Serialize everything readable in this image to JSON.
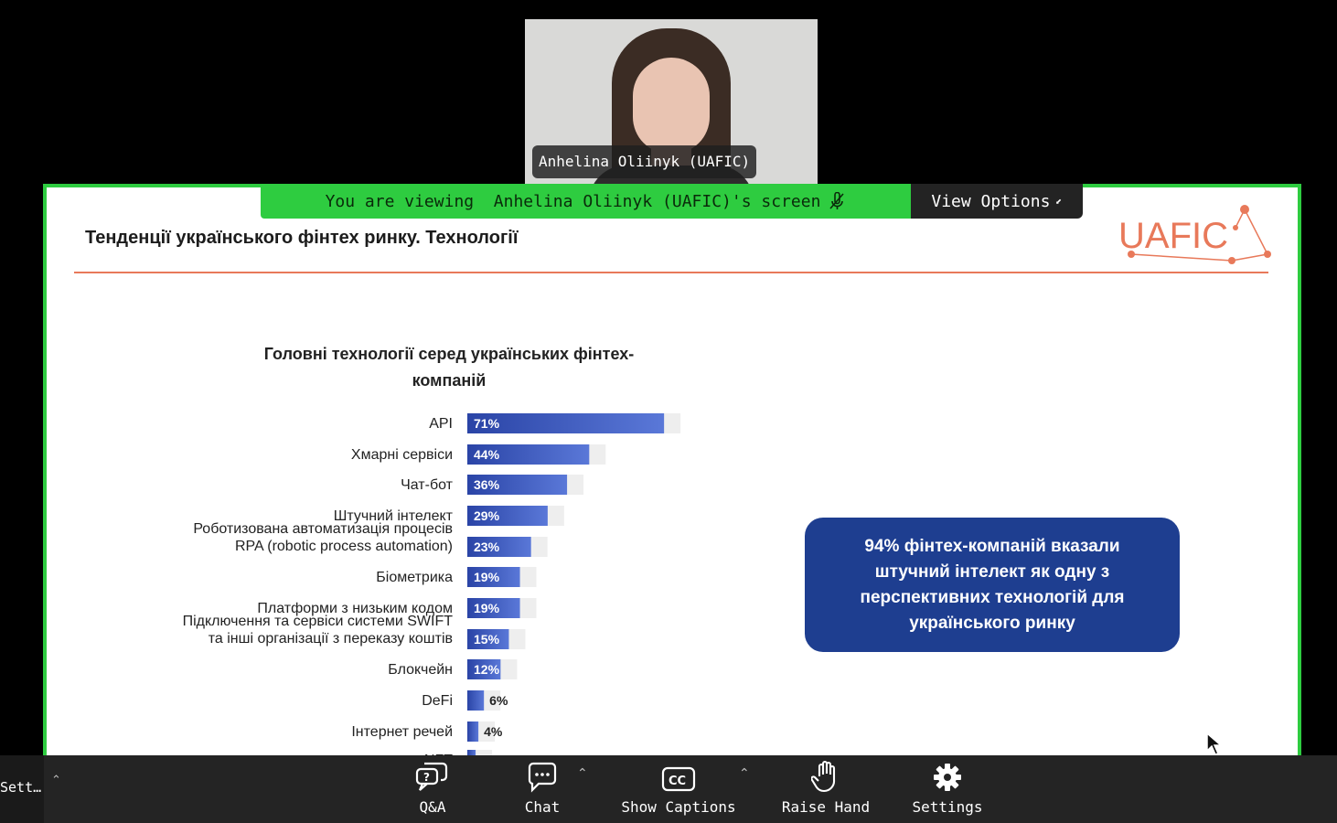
{
  "participant": {
    "name": "Anhelina Oliinyk (UAFIC)"
  },
  "banner": {
    "viewing_text": "You are viewing  Anhelina Oliinyk (UAFIC)'s screen",
    "view_options_label": "View Options"
  },
  "slide": {
    "title": "Тенденції українського фінтех ринку. Технології",
    "logo_text": "UAFIC",
    "callout": "94% фінтех-компаній вказали штучний інтелект як одну з перспективних технологій для українського ринку"
  },
  "chart_data": {
    "type": "bar",
    "orientation": "horizontal",
    "title": "Головні технології серед українських фінтех-компаній",
    "categories": [
      "API",
      "Хмарні сервіси",
      "Чат-бот",
      "Штучний інтелект",
      "Роботизована автоматизація процесів RPA (robotic process automation)",
      "Біометрика",
      "Платформи з низьким кодом",
      "Підключення та сервіси системи SWIFT та інші організації з переказу коштів",
      "Блокчейн",
      "DeFi",
      "Інтернет речей",
      "NFT"
    ],
    "label_lines": [
      [
        "API"
      ],
      [
        "Хмарні сервіси"
      ],
      [
        "Чат-бот"
      ],
      [
        "Штучний інтелект"
      ],
      [
        "Роботизована автоматизація процесів",
        "RPA (robotic process automation)"
      ],
      [
        "Біометрика"
      ],
      [
        "Платформи з низьким кодом"
      ],
      [
        "Підключення та сервіси системи SWIFT",
        "та інші організації з переказу коштів"
      ],
      [
        "Блокчейн"
      ],
      [
        "DeFi"
      ],
      [
        "Інтернет речей"
      ],
      [
        "NFT"
      ]
    ],
    "values": [
      71,
      44,
      36,
      29,
      23,
      19,
      19,
      15,
      12,
      6,
      4,
      3
    ],
    "value_labels": [
      "71%",
      "44%",
      "36%",
      "29%",
      "23%",
      "19%",
      "19%",
      "15%",
      "12%",
      "6%",
      "4%",
      ""
    ],
    "bar_color": "#2a44a6",
    "bar_color_light": "#5a78d8"
  },
  "toolbar": {
    "left_label": "Sett…",
    "qa": "Q&A",
    "chat": "Chat",
    "captions": "Show Captions",
    "raise_hand": "Raise Hand",
    "settings": "Settings"
  },
  "colors": {
    "share_border": "#2ecc40",
    "accent_orange": "#e8795a",
    "callout_bg": "#1e3e90"
  }
}
